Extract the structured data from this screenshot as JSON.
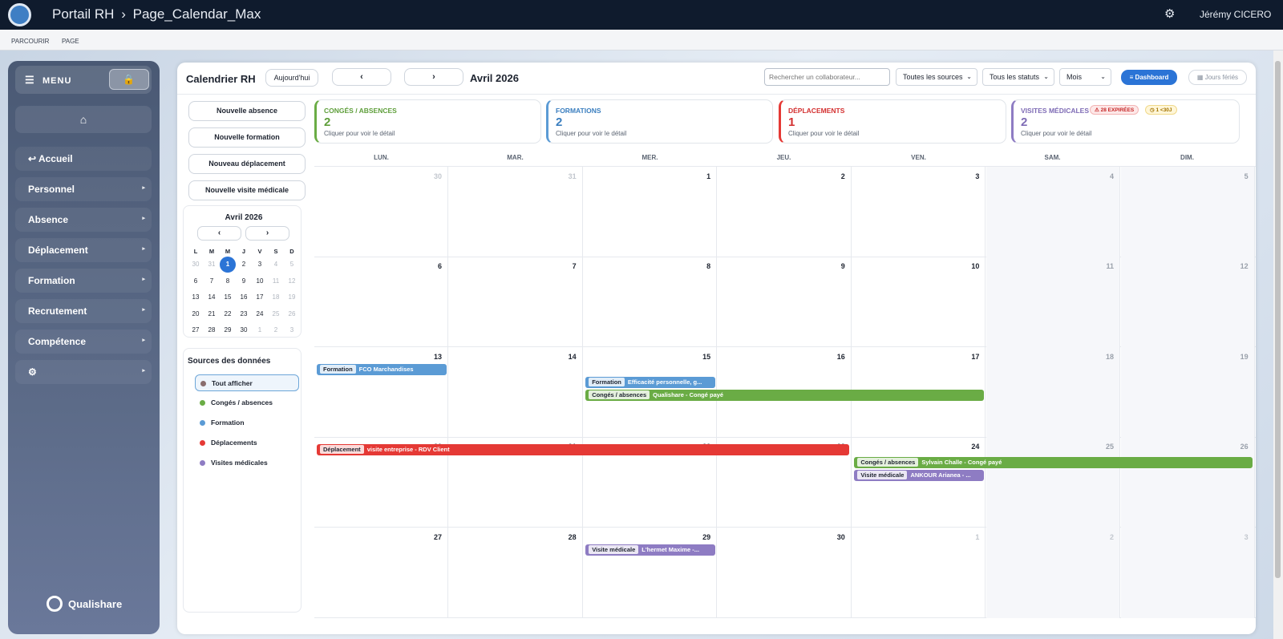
{
  "header": {
    "app_title": "Portail RH",
    "separator": "›",
    "page_title": "Page_Calendar_Max",
    "user": "Jérémy CICERO"
  },
  "subbar": {
    "items": [
      "PARCOURIR",
      "PAGE"
    ]
  },
  "sidebar": {
    "menu_label": "MENU",
    "items": [
      {
        "label": "↩ Accueil"
      },
      {
        "label": "Personnel",
        "chev": "▸"
      },
      {
        "label": "Absence",
        "chev": "▸"
      },
      {
        "label": "Déplacement",
        "chev": "▸"
      },
      {
        "label": "Formation",
        "chev": "▸"
      },
      {
        "label": "Recrutement",
        "chev": "▸"
      },
      {
        "label": "Compétence",
        "chev": "▸"
      },
      {
        "label": "⚙",
        "chev": "▸"
      }
    ],
    "brand": "Qualishare"
  },
  "toolbar": {
    "title": "Calendrier RH",
    "today": "Aujourd'hui",
    "prev": "‹",
    "next": "›",
    "month": "Avril 2026",
    "search_placeholder": "Rechercher un collaborateur...",
    "source_filter": "Toutes les sources",
    "status_filter": "Tous les statuts",
    "view": "Mois",
    "dashboard": "≡ Dashboard",
    "feries": "▦ Jours fériés"
  },
  "actions": [
    "Nouvelle absence",
    "Nouvelle formation",
    "Nouveau déplacement",
    "Nouvelle visite médicale"
  ],
  "mini_calendar": {
    "title": "Avril 2026",
    "prev": "‹",
    "next": "›",
    "dow": [
      "L",
      "M",
      "M",
      "J",
      "V",
      "S",
      "D"
    ],
    "weeks": [
      [
        "30",
        "31",
        "1",
        "2",
        "3",
        "4",
        "5"
      ],
      [
        "6",
        "7",
        "8",
        "9",
        "10",
        "11",
        "12"
      ],
      [
        "13",
        "14",
        "15",
        "16",
        "17",
        "18",
        "19"
      ],
      [
        "20",
        "21",
        "22",
        "23",
        "24",
        "25",
        "26"
      ],
      [
        "27",
        "28",
        "29",
        "30",
        "1",
        "2",
        "3"
      ]
    ]
  },
  "sources": {
    "title": "Sources des données",
    "items": [
      {
        "label": "Tout afficher",
        "color": "#8a6d6d"
      },
      {
        "label": "Congés / absences",
        "color": "#6aac45"
      },
      {
        "label": "Formation",
        "color": "#5b9bd5"
      },
      {
        "label": "Déplacements",
        "color": "#e53935"
      },
      {
        "label": "Visites médicales",
        "color": "#8e7cc3"
      }
    ]
  },
  "cards": [
    {
      "title": "CONGÉS / ABSENCES",
      "count": "2",
      "sub": "Cliquer pour voir le détail",
      "color": "#5e9e3a"
    },
    {
      "title": "FORMATIONS",
      "count": "2",
      "sub": "Cliquer pour voir le détail",
      "color": "#3a7ebf"
    },
    {
      "title": "DÉPLACEMENTS",
      "count": "1",
      "sub": "Cliquer pour voir le détail",
      "color": "#d32f2f"
    },
    {
      "title": "VISITES MÉDICALES",
      "count": "2",
      "sub": "Cliquer pour voir le détail",
      "color": "#7e6bb5",
      "badges": [
        "⚠ 28 EXPIRÉES",
        "◷ 1 <30J"
      ]
    }
  ],
  "calendar": {
    "dow": [
      "LUN.",
      "MAR.",
      "MER.",
      "JEU.",
      "VEN.",
      "SAM.",
      "DIM."
    ],
    "weeks": [
      [
        "30",
        "31",
        "1",
        "2",
        "3",
        "4",
        "5"
      ],
      [
        "6",
        "7",
        "8",
        "9",
        "10",
        "11",
        "12"
      ],
      [
        "13",
        "14",
        "15",
        "16",
        "17",
        "18",
        "19"
      ],
      [
        "20",
        "21",
        "22",
        "23",
        "24",
        "25",
        "26"
      ],
      [
        "27",
        "28",
        "29",
        "30",
        "1",
        "2",
        "3"
      ]
    ],
    "events": [
      {
        "tag": "Formation",
        "text": "FCO Marchandises",
        "color": "#5b9bd5"
      },
      {
        "tag": "Formation",
        "text": "Efficacité personnelle, g...",
        "color": "#5b9bd5"
      },
      {
        "tag": "Congés / absences",
        "text": "Qualishare - Congé payé",
        "color": "#6aac45"
      },
      {
        "tag": "Déplacement",
        "text": "visite entreprise - RDV Client",
        "color": "#e53935"
      },
      {
        "tag": "Congés / absences",
        "text": "Sylvain Challe - Congé payé",
        "color": "#6aac45"
      },
      {
        "tag": "Visite médicale",
        "text": "ANKOUR Arianea - ...",
        "color": "#8e7cc3"
      },
      {
        "tag": "Visite médicale",
        "text": "L'hermet Maxime -...",
        "color": "#8e7cc3"
      }
    ]
  }
}
